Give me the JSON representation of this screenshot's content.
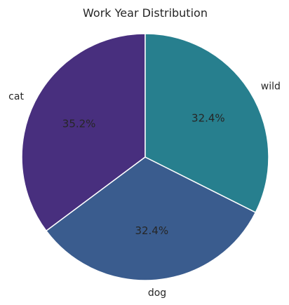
{
  "chart_data": {
    "type": "pie",
    "title": "Work Year Distribution",
    "categories": [
      "cat",
      "dog",
      "wild"
    ],
    "values": [
      35.2,
      32.4,
      32.4
    ],
    "value_labels": [
      "35.2%",
      "32.4%",
      "32.4%"
    ],
    "colors": [
      "#482f7e",
      "#3a5c8e",
      "#277f8e"
    ],
    "start_angle_deg": 90,
    "direction": "counterclockwise",
    "legend": "none"
  }
}
